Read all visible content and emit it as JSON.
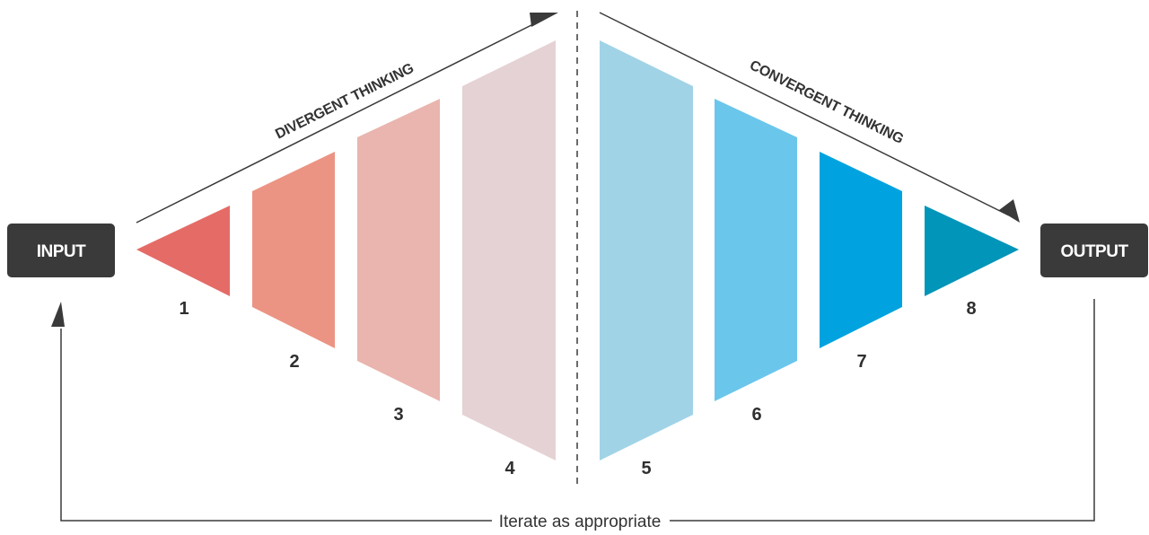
{
  "input_label": "INPUT",
  "output_label": "OUTPUT",
  "divergent_label": "DIVERGENT THINKING",
  "convergent_label": "CONVERGENT THINKING",
  "loop_label": "Iterate as appropriate",
  "stages": [
    {
      "number": "1",
      "color": "#e56b66"
    },
    {
      "number": "2",
      "color": "#ec9484"
    },
    {
      "number": "3",
      "color": "#e9b5ae"
    },
    {
      "number": "4",
      "color": "#e5d2d4"
    },
    {
      "number": "5",
      "color": "#a1d3e7"
    },
    {
      "number": "6",
      "color": "#6bc6ec"
    },
    {
      "number": "7",
      "color": "#00a3df"
    },
    {
      "number": "8",
      "color": "#0195b9"
    }
  ],
  "colors": {
    "box": "#3a3a3a",
    "line": "#3a3a3a"
  }
}
